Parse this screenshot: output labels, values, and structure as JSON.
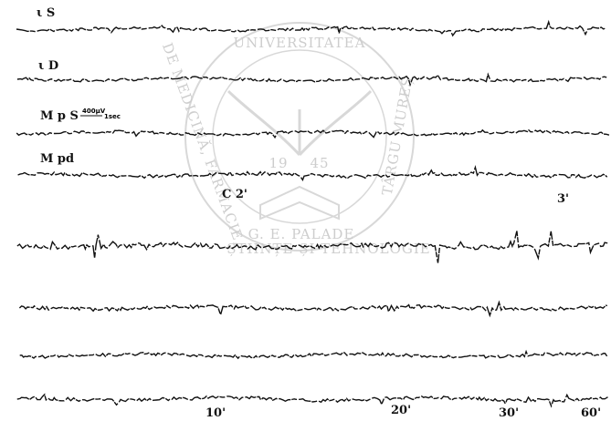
{
  "trace_labels": [
    "ι S",
    "ι D",
    "M p S",
    "M pd"
  ],
  "calibration": {
    "amplitude": "400μV",
    "time": "1sec"
  },
  "time_marks": [
    "C 2'",
    "3'",
    "10'",
    "20'",
    "30'",
    "60'"
  ],
  "watermark": {
    "top": "UNIVERSITATEA",
    "left": "DE MEDICINĂ, FARMACIE,",
    "right": "TÂRGU MUREȘ",
    "bottom": "G. E. PALADE",
    "inner": "ȘTIINȚE ȘI TEHNOLOGIE",
    "year_left": "19",
    "year_right": "45"
  }
}
